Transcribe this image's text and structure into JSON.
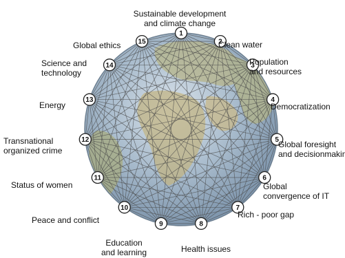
{
  "challenges": [
    {
      "number": "1",
      "lines": [
        "Sustainable development",
        "and climate change"
      ]
    },
    {
      "number": "2",
      "lines": [
        "Clean water"
      ]
    },
    {
      "number": "3",
      "lines": [
        "Population",
        "and resources"
      ]
    },
    {
      "number": "4",
      "lines": [
        "Democratization"
      ]
    },
    {
      "number": "5",
      "lines": [
        "Global foresight",
        "and decisionmaking"
      ]
    },
    {
      "number": "6",
      "lines": [
        "Global",
        "convergence of IT"
      ]
    },
    {
      "number": "7",
      "lines": [
        "Rich - poor gap"
      ]
    },
    {
      "number": "8",
      "lines": [
        "Health issues"
      ]
    },
    {
      "number": "9",
      "lines": [
        "Education",
        "and learning"
      ]
    },
    {
      "number": "10",
      "lines": [
        "Peace and conflict"
      ]
    },
    {
      "number": "11",
      "lines": [
        "Status of women"
      ]
    },
    {
      "number": "12",
      "lines": [
        "Transnational",
        "organized crime"
      ]
    },
    {
      "number": "13",
      "lines": [
        "Energy"
      ]
    },
    {
      "number": "14",
      "lines": [
        "Science and",
        "technology"
      ]
    },
    {
      "number": "15",
      "lines": [
        "Global ethics"
      ]
    }
  ],
  "colors": {
    "globe_ocean": "#8fa8c0",
    "globe_land": "#b8b68a",
    "links": "#4a4a4a",
    "node_fill": "#ffffff",
    "node_stroke": "#222222"
  }
}
